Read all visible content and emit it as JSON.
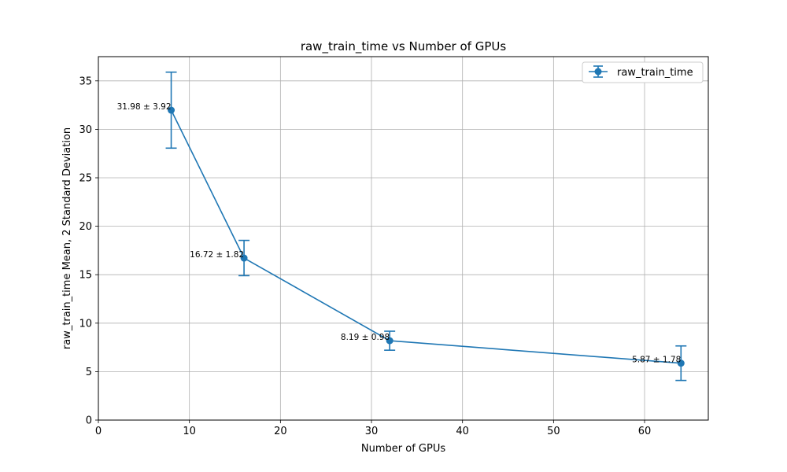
{
  "colors": {
    "series": "#1f77b4",
    "grid": "#b0b0b0",
    "axis": "#000000"
  },
  "chart_data": {
    "type": "line",
    "title": "raw_train_time vs Number of GPUs",
    "xlabel": "Number of GPUs",
    "ylabel": "raw_train_time Mean, 2 Standard Deviation",
    "xlim": [
      0,
      67
    ],
    "ylim": [
      0,
      37.5
    ],
    "xticks": [
      0,
      10,
      20,
      30,
      40,
      50,
      60
    ],
    "yticks": [
      0,
      5,
      10,
      15,
      20,
      25,
      30,
      35
    ],
    "grid": true,
    "legend_position": "top-right",
    "series": [
      {
        "name": "raw_train_time",
        "x": [
          8,
          16,
          32,
          64
        ],
        "y": [
          31.98,
          16.72,
          8.19,
          5.87
        ],
        "error": [
          3.92,
          1.82,
          0.98,
          1.78
        ],
        "labels": [
          "31.98 ± 3.92",
          "16.72 ± 1.82",
          "8.19 ± 0.98",
          "5.87 ± 1.78"
        ]
      }
    ]
  }
}
